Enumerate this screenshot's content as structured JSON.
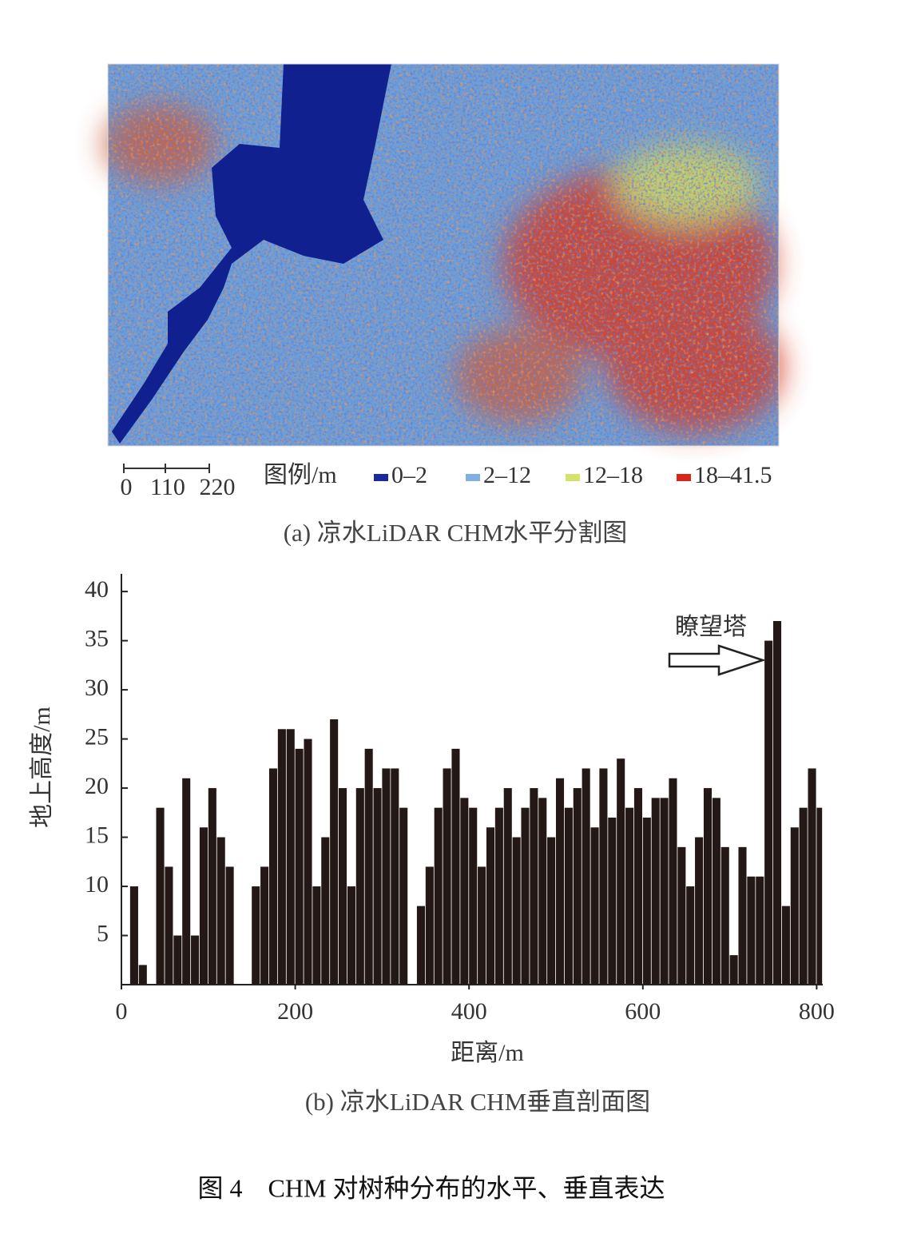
{
  "figure": {
    "caption": "图 4　CHM 对树种分布的水平、垂直表达"
  },
  "panel_a": {
    "caption": "(a) 凉水LiDAR CHM水平分割图",
    "scale_bar": [
      0,
      110,
      220
    ],
    "legend_title": "图例/m",
    "legend": [
      {
        "label": "0–2",
        "color": "#1a2a9c"
      },
      {
        "label": "2–12",
        "color": "#7fb0e0"
      },
      {
        "label": "12–18",
        "color": "#d6e36a"
      },
      {
        "label": "18–41.5",
        "color": "#d9241c"
      }
    ]
  },
  "chart_data": {
    "type": "bar",
    "caption": "(b) 凉水LiDAR CHM垂直剖面图",
    "xlabel": "距离/m",
    "ylabel": "地上高度/m",
    "annotation": "瞭望塔",
    "color": "#231815",
    "x": [
      0,
      10,
      20,
      30,
      40,
      50,
      60,
      70,
      80,
      90,
      100,
      110,
      120,
      130,
      140,
      150,
      160,
      170,
      180,
      190,
      200,
      210,
      220,
      230,
      240,
      250,
      260,
      270,
      280,
      290,
      300,
      310,
      320,
      330,
      340,
      350,
      360,
      370,
      380,
      390,
      400,
      410,
      420,
      430,
      440,
      450,
      460,
      470,
      480,
      490,
      500,
      510,
      520,
      530,
      540,
      550,
      560,
      570,
      580,
      590,
      600,
      610,
      620,
      630,
      640,
      650,
      660,
      670,
      680,
      690,
      700,
      710,
      720,
      730,
      740,
      750,
      760,
      770,
      780,
      790,
      800
    ],
    "values": [
      0,
      10,
      2,
      0,
      18,
      12,
      5,
      21,
      5,
      16,
      20,
      15,
      12,
      0,
      0,
      10,
      12,
      22,
      26,
      26,
      24,
      25,
      10,
      15,
      27,
      20,
      10,
      20,
      24,
      20,
      22,
      22,
      18,
      0,
      8,
      12,
      18,
      22,
      24,
      19,
      18,
      12,
      16,
      18,
      20,
      15,
      18,
      20,
      19,
      15,
      21,
      18,
      20,
      22,
      16,
      22,
      17,
      23,
      18,
      20,
      17,
      19,
      19,
      21,
      14,
      10,
      15,
      20,
      19,
      14,
      3,
      14,
      11,
      11,
      35,
      37,
      8,
      16,
      18,
      22,
      18
    ],
    "xlim": [
      0,
      807
    ],
    "ylim": [
      0,
      41.8
    ],
    "xticks": [
      0,
      200,
      400,
      600,
      800
    ],
    "yticks": [
      5,
      10,
      15,
      20,
      25,
      30,
      35,
      40
    ]
  }
}
